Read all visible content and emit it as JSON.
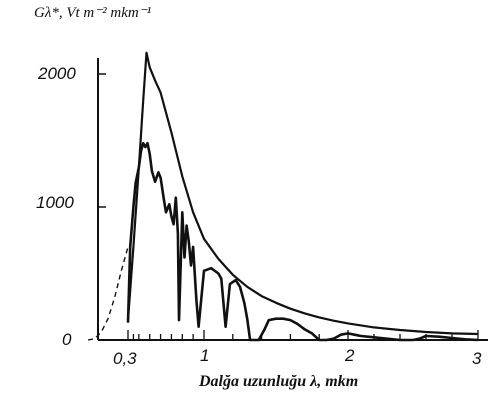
{
  "chart_data": {
    "type": "line",
    "title": "",
    "ylabel": "Gλ*, Vt m⁻² mkm⁻¹",
    "xlabel": "Dalğa uzunluğu λ, mkm",
    "y_ticks": [
      "0",
      "1000",
      "2000"
    ],
    "x_ticks": [
      "0,3",
      "1",
      "2",
      "3"
    ],
    "xlim": [
      0.0,
      3.0
    ],
    "ylim": [
      0,
      2200
    ],
    "grid": false,
    "legend": "none",
    "series": [
      {
        "style": "extraterrestrial-upper-curve",
        "x": [
          0.3,
          0.35,
          0.4,
          0.44,
          0.47,
          0.5,
          0.55,
          0.6,
          0.7,
          0.8,
          0.9,
          1.0,
          1.1,
          1.2,
          1.3,
          1.4,
          1.5,
          1.6,
          1.7,
          1.8,
          1.9,
          2.0,
          2.2,
          2.4,
          2.6,
          2.8,
          3.0
        ],
        "y": [
          150,
          700,
          1300,
          1800,
          2160,
          2050,
          1950,
          1860,
          1560,
          1230,
          960,
          760,
          610,
          490,
          400,
          330,
          280,
          235,
          200,
          170,
          145,
          125,
          95,
          75,
          60,
          50,
          45
        ]
      },
      {
        "style": "surface-lower-curve",
        "x": [
          0.3,
          0.32,
          0.35,
          0.37,
          0.4,
          0.42,
          0.44,
          0.46,
          0.48,
          0.5,
          0.52,
          0.55,
          0.58,
          0.6,
          0.63,
          0.65,
          0.68,
          0.7,
          0.72,
          0.74,
          0.76,
          0.77,
          0.8,
          0.82,
          0.84,
          0.86,
          0.88,
          0.9,
          0.93,
          0.95,
          0.98,
          1.0,
          1.05,
          1.1,
          1.12,
          1.15,
          1.18,
          1.22,
          1.25,
          1.28,
          1.3,
          1.32,
          1.35,
          1.38,
          1.4,
          1.42,
          1.45,
          1.5,
          1.55,
          1.6,
          1.65,
          1.7,
          1.75,
          1.8,
          1.85,
          1.9,
          1.95,
          2.0,
          2.05,
          2.1,
          2.2,
          2.3,
          2.4,
          2.45,
          2.5,
          2.55,
          2.6,
          2.7,
          2.8,
          2.9,
          3.0
        ],
        "y": [
          130,
          700,
          1000,
          1180,
          1300,
          1420,
          1480,
          1450,
          1480,
          1400,
          1270,
          1190,
          1260,
          1220,
          1060,
          960,
          1020,
          930,
          870,
          1070,
          800,
          150,
          960,
          620,
          860,
          740,
          560,
          700,
          300,
          100,
          350,
          520,
          540,
          500,
          460,
          100,
          420,
          450,
          400,
          280,
          160,
          0,
          0,
          0,
          40,
          80,
          150,
          160,
          160,
          150,
          120,
          80,
          50,
          0,
          0,
          10,
          40,
          50,
          40,
          30,
          20,
          10,
          0,
          0,
          0,
          10,
          30,
          25,
          15,
          5,
          0
        ]
      },
      {
        "style": "dashed-uv-extension",
        "x": [
          0.0,
          0.05,
          0.1,
          0.15,
          0.2,
          0.25,
          0.3
        ],
        "y": [
          0,
          10,
          60,
          160,
          320,
          520,
          700
        ]
      }
    ]
  }
}
